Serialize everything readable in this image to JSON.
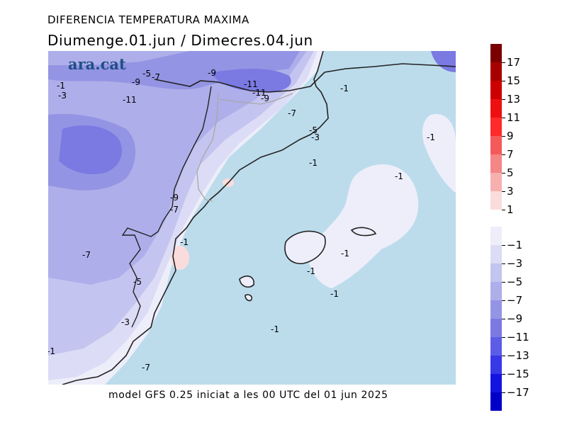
{
  "header": {
    "title": "DIFERENCIA TEMPERATURA MAXIMA",
    "period": "Diumenge.01.jun  /  Dimecres.04.jun"
  },
  "brand": {
    "logo_text": "ara.cat"
  },
  "footer": {
    "model_note": "model GFS 0.25 iniciat a les 00 UTC del 01 jun 2025"
  },
  "map": {
    "contour_labels": [
      "-1",
      "-3",
      "-5",
      "-7",
      "-9",
      "-11",
      "-9",
      "-11",
      "-11",
      "-9",
      "-1",
      "-7",
      "-5",
      "-3",
      "-1",
      "-1",
      "-1",
      "-9",
      "-7",
      "-1",
      "-7",
      "-5",
      "-3",
      "-1",
      "-1",
      "-1",
      "-1",
      "-1",
      "-7",
      "-1"
    ]
  },
  "legend": {
    "warm": [
      {
        "label": "17",
        "color": "#7a0000"
      },
      {
        "label": "15",
        "color": "#a80000"
      },
      {
        "label": "13",
        "color": "#cc0000"
      },
      {
        "label": "11",
        "color": "#ee1010"
      },
      {
        "label": "9",
        "color": "#ff2a2a"
      },
      {
        "label": "7",
        "color": "#f45a5a"
      },
      {
        "label": "5",
        "color": "#f48686"
      },
      {
        "label": "3",
        "color": "#f6b0b0"
      },
      {
        "label": "1",
        "color": "#fbdcdc"
      }
    ],
    "cold": [
      {
        "label": "−1",
        "color": "#eeeefa"
      },
      {
        "label": "−3",
        "color": "#dcdcf6"
      },
      {
        "label": "−5",
        "color": "#c4c4f0"
      },
      {
        "label": "−7",
        "color": "#aeaeea"
      },
      {
        "label": "−9",
        "color": "#9494e4"
      },
      {
        "label": "−11",
        "color": "#7a7ae2"
      },
      {
        "label": "−13",
        "color": "#5c5ce6"
      },
      {
        "label": "−15",
        "color": "#3838e8"
      },
      {
        "label": "−17",
        "color": "#1414e0"
      },
      {
        "label": "",
        "color": "#0000c8"
      }
    ]
  },
  "colors": {
    "sea_near_zero": "#bcdcec",
    "coast": "#222222",
    "border": "#a8a8a8"
  }
}
